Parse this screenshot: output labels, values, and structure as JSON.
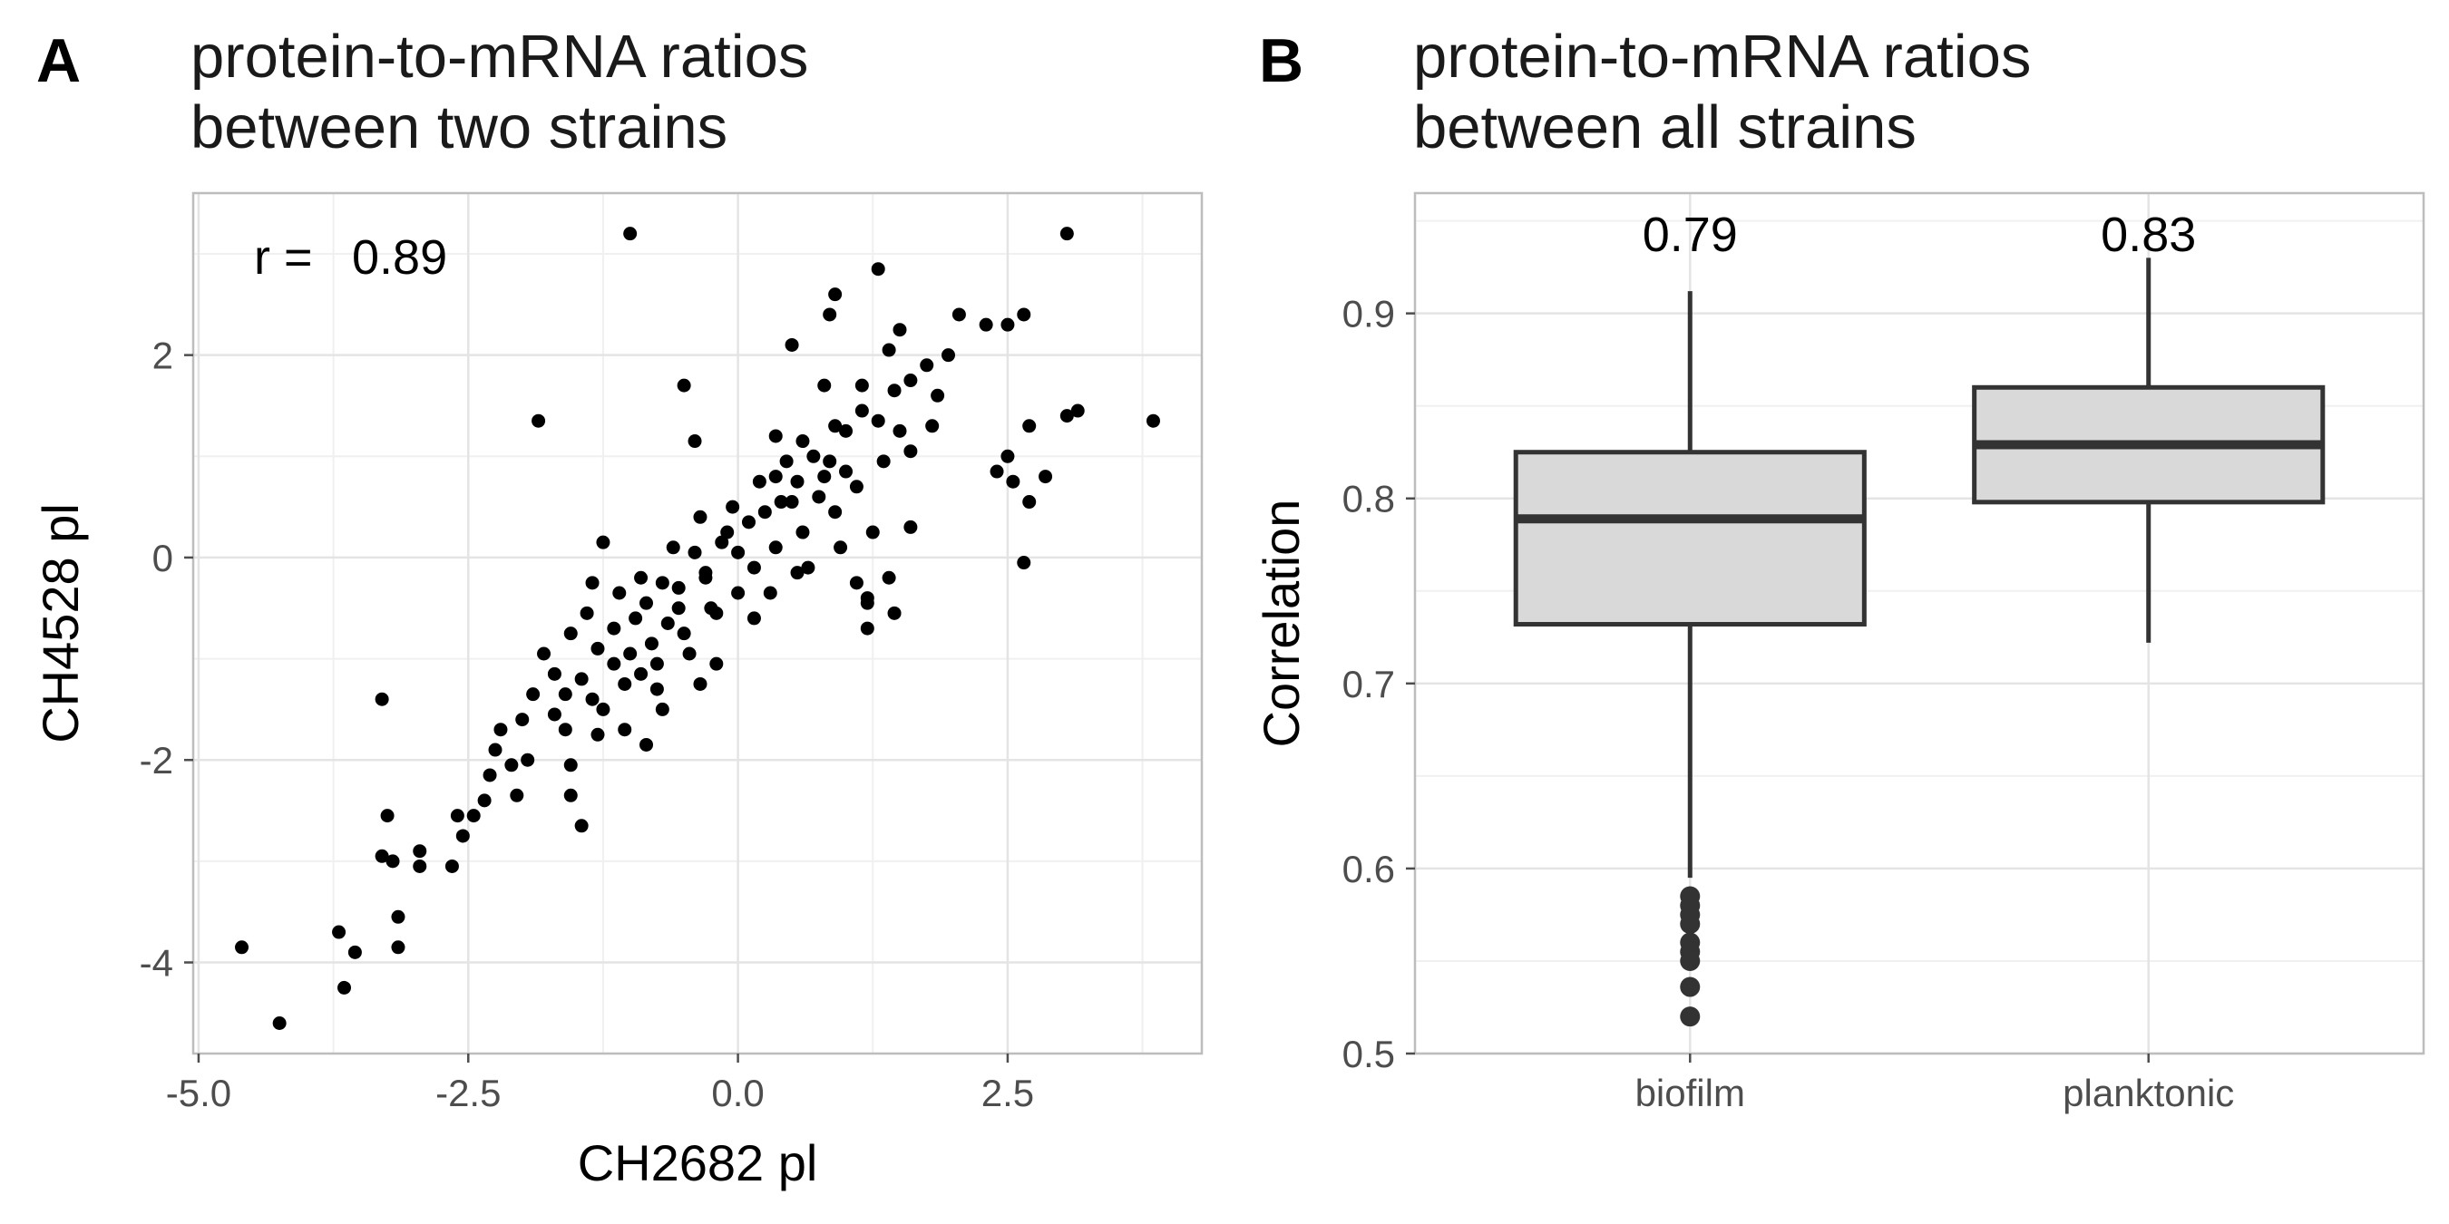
{
  "panel_a": {
    "letter": "A",
    "title_line1": "protein-to-mRNA ratios",
    "title_line2": "between two strains"
  },
  "panel_b": {
    "letter": "B",
    "title_line1": "protein-to-mRNA ratios",
    "title_line2": "between all strains"
  },
  "chart_data": [
    {
      "type": "scatter",
      "title": "protein-to-mRNA ratios between two strains",
      "xlabel": "CH2682 pl",
      "ylabel": "CH4528 pl",
      "xlim": [
        -5.05,
        4.3
      ],
      "ylim": [
        -4.9,
        3.6
      ],
      "xticks": [
        -5.0,
        -2.5,
        0.0,
        2.5
      ],
      "xtick_labels": [
        "-5.0",
        "-2.5",
        "0.0",
        "2.5"
      ],
      "yticks": [
        -4,
        -2,
        0,
        2
      ],
      "ytick_labels": [
        "-4",
        "-2",
        "0",
        "2"
      ],
      "grid": true,
      "annotation": {
        "label": "r = ",
        "value": "0.89"
      },
      "points": [
        [
          -4.6,
          -3.85
        ],
        [
          -4.25,
          -4.6
        ],
        [
          -3.7,
          -3.7
        ],
        [
          -3.65,
          -4.25
        ],
        [
          -3.55,
          -3.9
        ],
        [
          -3.3,
          -1.4
        ],
        [
          -3.25,
          -2.55
        ],
        [
          -3.3,
          -2.95
        ],
        [
          -3.2,
          -3.0
        ],
        [
          -3.15,
          -3.55
        ],
        [
          -3.15,
          -3.85
        ],
        [
          -2.95,
          -2.9
        ],
        [
          -2.95,
          -3.05
        ],
        [
          -2.65,
          -3.05
        ],
        [
          -1.85,
          1.35
        ],
        [
          -1.45,
          -2.65
        ],
        [
          -1.55,
          -2.35
        ],
        [
          -1.0,
          3.2
        ],
        [
          -0.5,
          1.7
        ],
        [
          -0.4,
          1.15
        ],
        [
          0.9,
          2.6
        ],
        [
          0.85,
          2.4
        ],
        [
          0.5,
          2.1
        ],
        [
          0.35,
          1.2
        ],
        [
          1.3,
          2.85
        ],
        [
          0.8,
          1.7
        ],
        [
          3.05,
          3.2
        ],
        [
          3.85,
          1.35
        ],
        [
          3.15,
          1.45
        ],
        [
          2.65,
          -0.05
        ],
        [
          2.7,
          0.55
        ],
        [
          1.45,
          -0.55
        ],
        [
          1.2,
          -0.45
        ],
        [
          1.2,
          -0.7
        ],
        [
          1.4,
          -0.2
        ],
        [
          1.2,
          -0.4
        ],
        [
          2.4,
          0.85
        ],
        [
          2.85,
          0.8
        ],
        [
          3.05,
          1.4
        ],
        [
          2.5,
          1.0
        ],
        [
          2.55,
          0.75
        ],
        [
          2.7,
          1.3
        ],
        [
          2.5,
          2.3
        ],
        [
          2.65,
          2.4
        ],
        [
          2.05,
          2.4
        ],
        [
          1.85,
          1.6
        ],
        [
          1.5,
          2.25
        ],
        [
          2.3,
          2.3
        ],
        [
          1.1,
          -0.25
        ],
        [
          1.6,
          0.3
        ],
        [
          0.55,
          -0.15
        ],
        [
          -0.2,
          -0.55
        ],
        [
          -0.35,
          -1.25
        ],
        [
          -0.7,
          -1.5
        ],
        [
          -0.9,
          -1.15
        ],
        [
          -1.25,
          0.15
        ],
        [
          -1.35,
          -0.25
        ],
        [
          -1.55,
          -0.75
        ],
        [
          -1.6,
          -1.7
        ],
        [
          -1.8,
          -0.95
        ],
        [
          -2.0,
          -1.6
        ],
        [
          -2.25,
          -1.9
        ],
        [
          -2.3,
          -2.15
        ],
        [
          -2.45,
          -2.55
        ],
        [
          -2.6,
          -2.55
        ],
        [
          -2.55,
          -2.75
        ],
        [
          -1.25,
          -1.5
        ],
        [
          -1.05,
          -1.7
        ],
        [
          -0.85,
          -1.85
        ],
        [
          -1.6,
          -1.35
        ],
        [
          -2.1,
          -2.05
        ],
        [
          -2.35,
          -2.4
        ],
        [
          -1.95,
          -2.0
        ],
        [
          -1.7,
          -1.55
        ],
        [
          -1.45,
          -1.2
        ],
        [
          -1.3,
          -0.9
        ],
        [
          -1.15,
          -0.7
        ],
        [
          -1.0,
          -0.95
        ],
        [
          -0.85,
          -0.45
        ],
        [
          -0.7,
          -0.25
        ],
        [
          -0.55,
          -0.3
        ],
        [
          -0.4,
          0.05
        ],
        [
          -0.3,
          -0.2
        ],
        [
          -0.15,
          0.15
        ],
        [
          0.0,
          0.05
        ],
        [
          0.1,
          0.35
        ],
        [
          0.25,
          0.45
        ],
        [
          0.4,
          0.55
        ],
        [
          0.55,
          0.75
        ],
        [
          0.7,
          1.0
        ],
        [
          0.85,
          0.95
        ],
        [
          1.0,
          1.25
        ],
        [
          1.15,
          1.45
        ],
        [
          1.3,
          1.35
        ],
        [
          1.45,
          1.65
        ],
        [
          1.6,
          1.75
        ],
        [
          1.75,
          1.9
        ],
        [
          1.95,
          2.0
        ],
        [
          -0.65,
          -0.65
        ],
        [
          -0.5,
          -0.75
        ],
        [
          -0.95,
          -0.6
        ],
        [
          -1.15,
          -1.05
        ],
        [
          -0.75,
          -1.05
        ],
        [
          -0.25,
          -0.5
        ],
        [
          0.15,
          -0.1
        ],
        [
          0.35,
          0.1
        ],
        [
          0.6,
          0.25
        ],
        [
          0.9,
          0.45
        ],
        [
          1.1,
          0.7
        ],
        [
          1.35,
          0.95
        ],
        [
          0.45,
          0.95
        ],
        [
          0.2,
          0.75
        ],
        [
          -0.05,
          0.5
        ],
        [
          -0.35,
          0.4
        ],
        [
          -0.6,
          0.1
        ],
        [
          -0.9,
          -0.2
        ],
        [
          -1.1,
          -0.35
        ],
        [
          -1.4,
          -0.55
        ],
        [
          -1.7,
          -1.15
        ],
        [
          -1.9,
          -1.35
        ],
        [
          -2.2,
          -1.7
        ],
        [
          0.75,
          0.6
        ],
        [
          1.0,
          0.85
        ],
        [
          0.3,
          -0.35
        ],
        [
          0.0,
          -0.35
        ],
        [
          -0.45,
          -0.95
        ],
        [
          -0.75,
          -1.3
        ],
        [
          1.25,
          0.25
        ],
        [
          0.95,
          0.1
        ],
        [
          0.65,
          -0.1
        ],
        [
          1.6,
          1.05
        ],
        [
          1.8,
          1.3
        ],
        [
          1.5,
          1.25
        ],
        [
          -2.05,
          -2.35
        ],
        [
          -1.55,
          -2.05
        ],
        [
          -1.3,
          -1.75
        ],
        [
          -0.2,
          -1.05
        ],
        [
          0.15,
          -0.6
        ],
        [
          0.5,
          0.55
        ],
        [
          0.8,
          0.8
        ],
        [
          -0.1,
          0.25
        ],
        [
          -0.3,
          -0.15
        ],
        [
          -0.55,
          -0.5
        ],
        [
          -0.8,
          -0.85
        ],
        [
          -1.05,
          -1.25
        ],
        [
          -1.35,
          -1.4
        ],
        [
          0.35,
          0.8
        ],
        [
          0.6,
          1.15
        ],
        [
          0.9,
          1.3
        ],
        [
          1.15,
          1.7
        ],
        [
          1.4,
          2.05
        ]
      ]
    },
    {
      "type": "box",
      "title": "protein-to-mRNA ratios between all strains",
      "xlabel": "",
      "ylabel": "Correlation",
      "categories": [
        "biofilm",
        "planktonic"
      ],
      "ylim": [
        0.5,
        0.965
      ],
      "yticks": [
        0.5,
        0.6,
        0.7,
        0.8,
        0.9
      ],
      "ytick_labels": [
        "0.5",
        "0.6",
        "0.7",
        "0.8",
        "0.9"
      ],
      "grid": true,
      "boxes": [
        {
          "category": "biofilm",
          "whisker_low": 0.595,
          "q1": 0.732,
          "median": 0.789,
          "q3": 0.825,
          "whisker_high": 0.912,
          "outliers": [
            0.585,
            0.58,
            0.575,
            0.57,
            0.56,
            0.555,
            0.55,
            0.536,
            0.52
          ],
          "label": "0.79"
        },
        {
          "category": "planktonic",
          "whisker_low": 0.722,
          "q1": 0.798,
          "median": 0.829,
          "q3": 0.86,
          "whisker_high": 0.93,
          "outliers": [],
          "label": "0.83"
        }
      ]
    }
  ]
}
